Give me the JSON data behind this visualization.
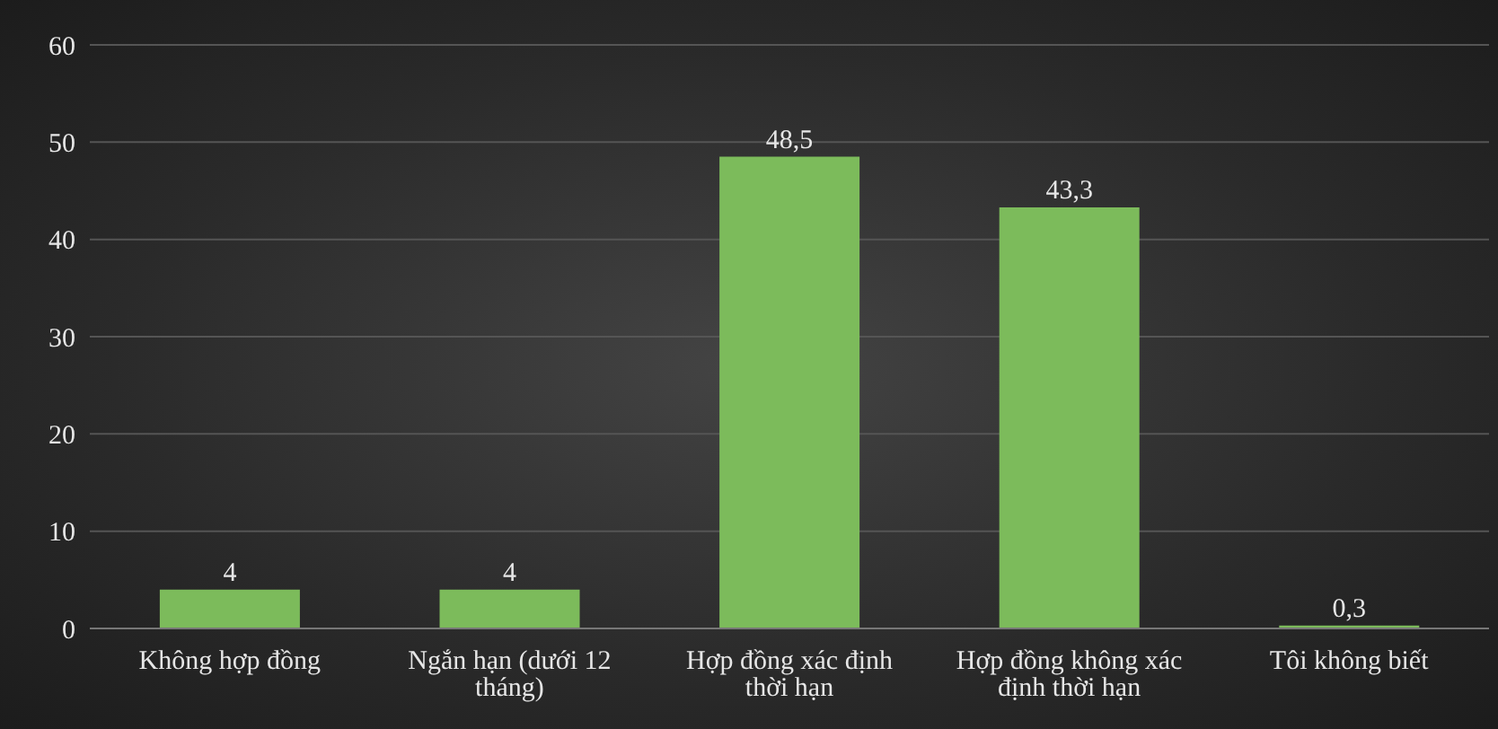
{
  "chart_data": {
    "type": "bar",
    "categories": [
      "Không hợp đồng",
      "Ngắn hạn (dưới 12 tháng)",
      "Hợp đồng xác định thời hạn",
      "Hợp đồng không xác định thời hạn",
      "Tôi không biết"
    ],
    "values": [
      4,
      4,
      48.5,
      43.3,
      0.3
    ],
    "value_labels": [
      "4",
      "4",
      "48,5",
      "43,3",
      "0,3"
    ],
    "color": "#7cbb5b",
    "ylim": [
      0,
      60
    ],
    "yticks": [
      0,
      10,
      20,
      30,
      40,
      50,
      60
    ],
    "grid": "y"
  }
}
